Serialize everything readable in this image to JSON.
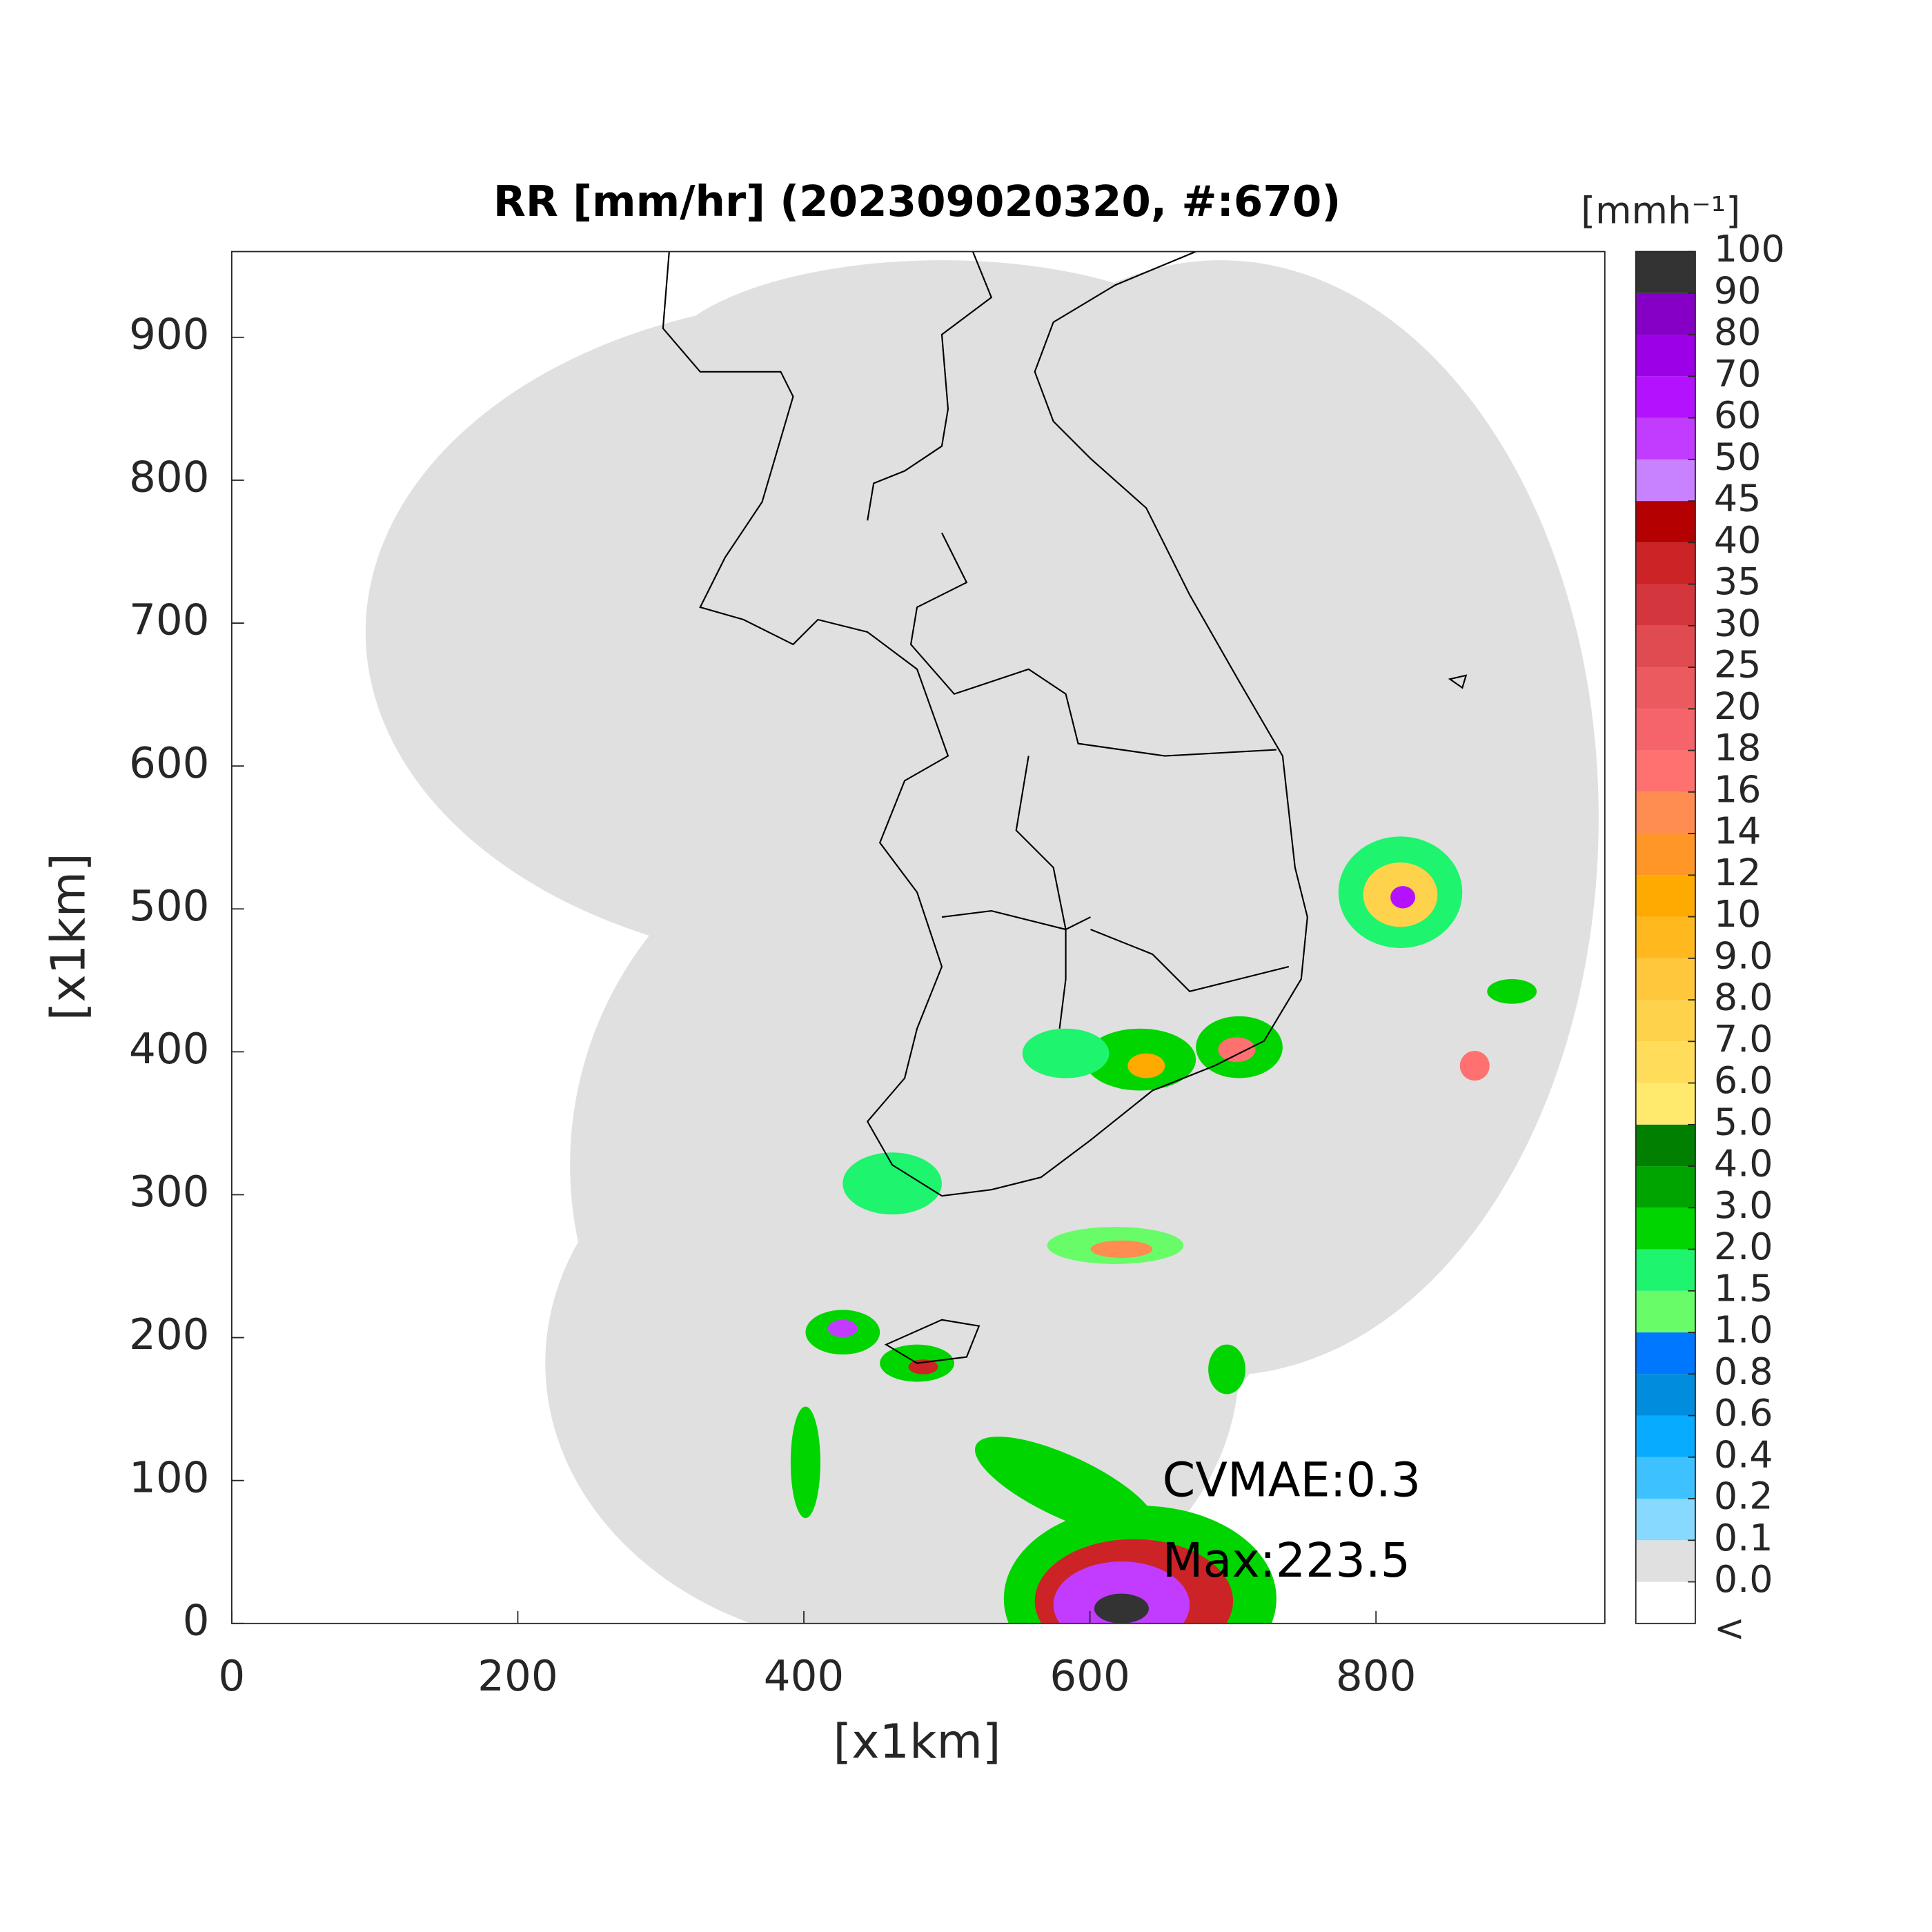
{
  "chart_data": {
    "type": "map",
    "title": "RR [mm/hr] (202309020320, #:670)",
    "xlabel": "[x1km]",
    "ylabel": "[x1km]",
    "xlim": [
      0,
      960
    ],
    "ylim": [
      0,
      960
    ],
    "xticks": [
      0,
      200,
      400,
      600,
      800
    ],
    "yticks": [
      0,
      100,
      200,
      300,
      400,
      500,
      600,
      700,
      800,
      900
    ],
    "annotations": [
      "CVMAE:0.3",
      "Max:223.5"
    ],
    "colorbar": {
      "title": "[mmh⁻¹]",
      "ticks": [
        "<",
        {
          "value": 0,
          "label": "0.0"
        },
        {
          "value": 0.1,
          "label": "0.1"
        },
        {
          "value": 0.2,
          "label": "0.2"
        },
        {
          "value": 0.4,
          "label": "0.4"
        },
        {
          "value": 0.6,
          "label": "0.6"
        },
        {
          "value": 0.8,
          "label": "0.8"
        },
        {
          "value": 1,
          "label": "1.0"
        },
        1.5,
        {
          "value": 2,
          "label": "2.0"
        },
        {
          "value": 3,
          "label": "3.0"
        },
        {
          "value": 4,
          "label": "4.0"
        },
        {
          "value": 5,
          "label": "5.0"
        },
        {
          "value": 6,
          "label": "6.0"
        },
        {
          "value": 7,
          "label": "7.0"
        },
        {
          "value": 8,
          "label": "8.0"
        },
        {
          "value": 9,
          "label": "9.0"
        },
        10,
        12,
        14,
        16,
        18,
        20,
        25,
        30,
        35,
        40,
        45,
        50,
        60,
        70,
        80,
        90,
        100
      ],
      "colors": [
        "#ffffff",
        "#e0e0e0",
        "#87d9ff",
        "#3ec1ff",
        "#07abff",
        "#008dde",
        "#0077ff",
        "#69fc69",
        "#1ef46e",
        "#00d500",
        "#00a400",
        "#007f00",
        "#ffea6e",
        "#ffdc5a",
        "#ffd24b",
        "#ffc83c",
        "#ffb91f",
        "#ffaa00",
        "#ff9627",
        "#ff8c50",
        "#ff7070",
        "#f5646a",
        "#ea5a5f",
        "#e04b52",
        "#d4363d",
        "#cc2326",
        "#b40000",
        "#c882ff",
        "#c13cff",
        "#b412ff",
        "#9c00e6",
        "#8500c4",
        "#333333"
      ]
    }
  }
}
